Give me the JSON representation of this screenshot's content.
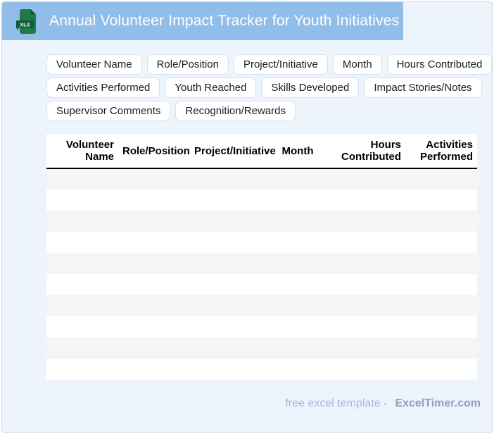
{
  "header": {
    "file_badge": "XLS",
    "title": "Annual Volunteer Impact Tracker for Youth Initiatives"
  },
  "tags": {
    "rows": [
      [
        "Volunteer Name",
        "Role/Position",
        "Project/Initiative",
        "Month",
        "Hours Contributed"
      ],
      [
        "Activities Performed",
        "Youth Reached",
        "Skills Developed",
        "Impact Stories/Notes"
      ],
      [
        "Supervisor Comments",
        "Recognition/Rewards"
      ]
    ]
  },
  "table": {
    "columns": [
      {
        "label": "Volunteer Name",
        "align": "right"
      },
      {
        "label": "Role/Position",
        "align": "center"
      },
      {
        "label": "Project/Initiative",
        "align": "center"
      },
      {
        "label": "Month",
        "align": "center"
      },
      {
        "label": "Hours Contributed",
        "align": "right"
      },
      {
        "label": "Activities Performed",
        "align": "right"
      }
    ],
    "empty_row_count": 10
  },
  "footer": {
    "prefix": "free excel template -",
    "brand": "ExcelTimer.com"
  },
  "colors": {
    "banner_blue": "#90bee9",
    "page_background": "#edf4fc",
    "chip_border": "#d5dfee",
    "row_stripe": "#f5f5f5",
    "header_rule": "#000000",
    "footer_prefix": "#a8b5e3",
    "footer_brand": "#959eba",
    "icon_green": "#1f7a4a",
    "icon_band_green": "#0f5c38"
  }
}
